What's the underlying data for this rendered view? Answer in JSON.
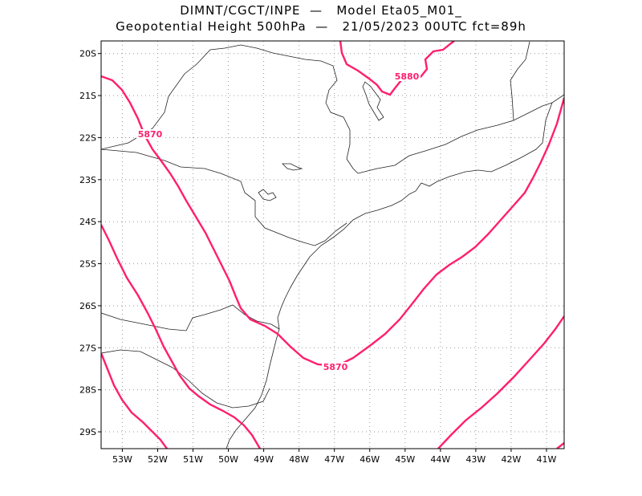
{
  "title": {
    "line1": "DIMNT/CGCT/INPE  —   Model Eta05_M01_",
    "line2": "Geopotential Height 500hPa  —   21/05/2023 00UTC fct=89h"
  },
  "map": {
    "lat_labels": [
      "20S",
      "21S",
      "22S",
      "23S",
      "24S",
      "25S",
      "26S",
      "27S",
      "28S",
      "29S"
    ],
    "lon_labels": [
      "53W",
      "52W",
      "51W",
      "50W",
      "49W",
      "48W",
      "47W",
      "46W",
      "45W",
      "44W",
      "43W",
      "42W",
      "41W"
    ],
    "contour_color": "#ff1f6e",
    "contour_labels": [
      "5870",
      "5880",
      "5870"
    ],
    "lon_range": [
      -53.6,
      -40.5
    ],
    "lat_range": [
      -29.4,
      -19.7
    ]
  }
}
